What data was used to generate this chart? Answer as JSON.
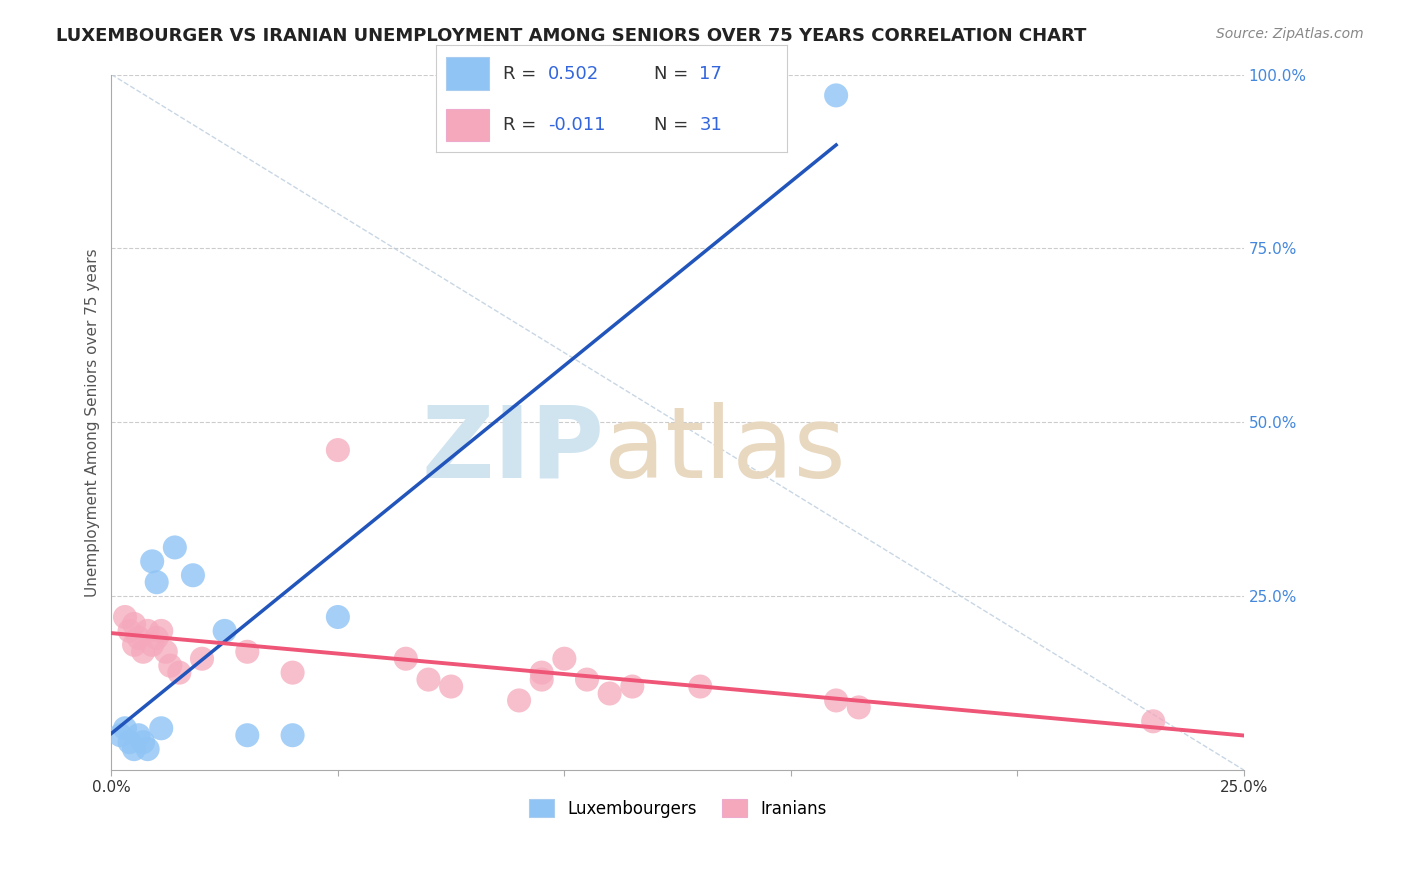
{
  "title": "LUXEMBOURGER VS IRANIAN UNEMPLOYMENT AMONG SENIORS OVER 75 YEARS CORRELATION CHART",
  "source": "Source: ZipAtlas.com",
  "xmin": 0.0,
  "xmax": 0.25,
  "ymin": 0.0,
  "ymax": 1.0,
  "luxembourger_x": [
    0.002,
    0.003,
    0.004,
    0.005,
    0.006,
    0.007,
    0.008,
    0.009,
    0.01,
    0.011,
    0.014,
    0.018,
    0.025,
    0.03,
    0.04,
    0.05,
    0.16
  ],
  "luxembourger_y": [
    0.05,
    0.06,
    0.04,
    0.03,
    0.05,
    0.04,
    0.03,
    0.3,
    0.27,
    0.06,
    0.32,
    0.28,
    0.2,
    0.05,
    0.05,
    0.22,
    0.97
  ],
  "iranian_x": [
    0.003,
    0.004,
    0.005,
    0.005,
    0.006,
    0.007,
    0.008,
    0.009,
    0.01,
    0.011,
    0.012,
    0.013,
    0.015,
    0.02,
    0.03,
    0.04,
    0.05,
    0.065,
    0.07,
    0.075,
    0.09,
    0.095,
    0.095,
    0.1,
    0.105,
    0.11,
    0.115,
    0.13,
    0.16,
    0.165,
    0.23
  ],
  "iranian_y": [
    0.22,
    0.2,
    0.18,
    0.21,
    0.19,
    0.17,
    0.2,
    0.18,
    0.19,
    0.2,
    0.17,
    0.15,
    0.14,
    0.16,
    0.17,
    0.14,
    0.46,
    0.16,
    0.13,
    0.12,
    0.1,
    0.14,
    0.13,
    0.16,
    0.13,
    0.11,
    0.12,
    0.12,
    0.1,
    0.09,
    0.07
  ],
  "legend_R_lux": "R = 0.502",
  "legend_N_lux": "N = 17",
  "legend_R_iran": "R = -0.011",
  "legend_N_iran": "N = 31",
  "lux_color": "#8FC4F5",
  "iran_color": "#F5A8BC",
  "lux_line_color": "#2255BB",
  "iran_line_color": "#EE5577",
  "diag_line_color": "#BBCCDD",
  "title_fontsize": 13,
  "label_fontsize": 11,
  "tick_fontsize": 11,
  "legend_fontsize": 14,
  "source_fontsize": 10
}
